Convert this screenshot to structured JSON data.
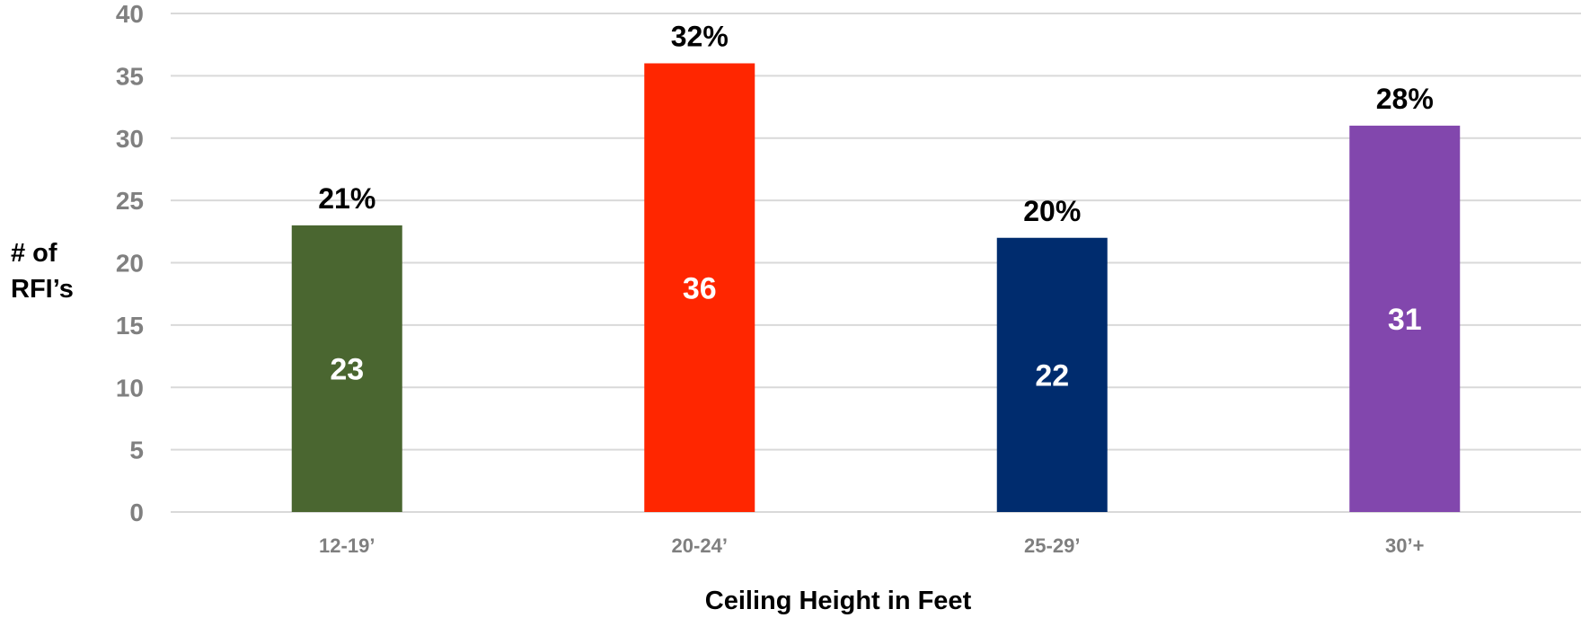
{
  "chart_data": {
    "type": "bar",
    "xlabel": "Ceiling Height in Feet",
    "ylabel_lines": [
      "# of",
      "RFI’s"
    ],
    "categories": [
      "12-19’",
      "20-24’",
      "25-29’",
      "30’+"
    ],
    "values": [
      23,
      36,
      22,
      31
    ],
    "percent_labels": [
      "21%",
      "32%",
      "20%",
      "28%"
    ],
    "colors": [
      "#4a6630",
      "#ff2600",
      "#002c6e",
      "#8247ad"
    ],
    "ylim": [
      0,
      40
    ],
    "yticks": [
      0,
      5,
      10,
      15,
      20,
      25,
      30,
      35,
      40
    ],
    "grid": true,
    "legend": "none"
  }
}
